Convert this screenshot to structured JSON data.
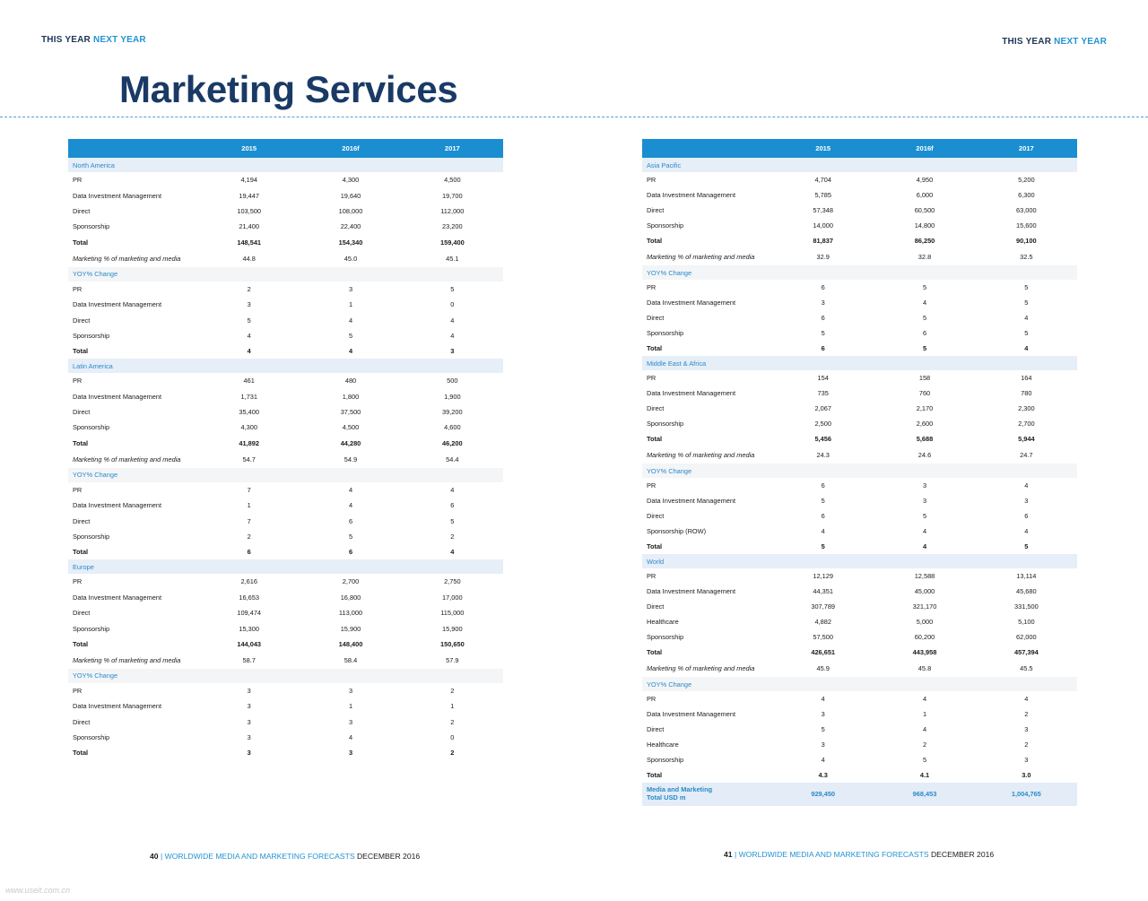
{
  "header": {
    "left_a": "THIS YEAR",
    "left_b": "NEXT YEAR",
    "right_a": "THIS YEAR",
    "right_b": "NEXT YEAR"
  },
  "title": "Marketing Services",
  "columns": [
    "2015",
    "2016f",
    "2017"
  ],
  "left": [
    {
      "type": "region",
      "label": "North America"
    },
    {
      "type": "row",
      "label": "PR",
      "values": [
        "4,194",
        "4,300",
        "4,500"
      ]
    },
    {
      "type": "row",
      "label": "Data Investment Management",
      "values": [
        "19,447",
        "19,640",
        "19,700"
      ]
    },
    {
      "type": "row",
      "label": "Direct",
      "values": [
        "103,500",
        "108,000",
        "112,000"
      ]
    },
    {
      "type": "row",
      "label": "Sponsorship",
      "values": [
        "21,400",
        "22,400",
        "23,200"
      ]
    },
    {
      "type": "total",
      "label": "Total",
      "values": [
        "148,541",
        "154,340",
        "159,400"
      ]
    },
    {
      "type": "mkt",
      "label": "Marketing % of marketing and media",
      "values": [
        "44.8",
        "45.0",
        "45.1"
      ]
    },
    {
      "type": "yoy",
      "label": "YOY% Change"
    },
    {
      "type": "row",
      "label": "PR",
      "values": [
        "2",
        "3",
        "5"
      ]
    },
    {
      "type": "row",
      "label": "Data Investment Management",
      "values": [
        "3",
        "1",
        "0"
      ]
    },
    {
      "type": "row",
      "label": "Direct",
      "values": [
        "5",
        "4",
        "4"
      ]
    },
    {
      "type": "row",
      "label": "Sponsorship",
      "values": [
        "4",
        "5",
        "4"
      ]
    },
    {
      "type": "total",
      "label": "Total",
      "values": [
        "4",
        "4",
        "3"
      ]
    },
    {
      "type": "region",
      "label": "Latin America"
    },
    {
      "type": "row",
      "label": "PR",
      "values": [
        "461",
        "480",
        "500"
      ]
    },
    {
      "type": "row",
      "label": "Data Investment Management",
      "values": [
        "1,731",
        "1,800",
        "1,900"
      ]
    },
    {
      "type": "row",
      "label": "Direct",
      "values": [
        "35,400",
        "37,500",
        "39,200"
      ]
    },
    {
      "type": "row",
      "label": "Sponsorship",
      "values": [
        "4,300",
        "4,500",
        "4,600"
      ]
    },
    {
      "type": "total",
      "label": "Total",
      "values": [
        "41,892",
        "44,280",
        "46,200"
      ]
    },
    {
      "type": "mkt",
      "label": "Marketing % of marketing and media",
      "values": [
        "54.7",
        "54.9",
        "54.4"
      ]
    },
    {
      "type": "yoy",
      "label": "YOY% Change"
    },
    {
      "type": "row",
      "label": "PR",
      "values": [
        "7",
        "4",
        "4"
      ]
    },
    {
      "type": "row",
      "label": "Data Investment Management",
      "values": [
        "1",
        "4",
        "6"
      ]
    },
    {
      "type": "row",
      "label": "Direct",
      "values": [
        "7",
        "6",
        "5"
      ]
    },
    {
      "type": "row",
      "label": "Sponsorship",
      "values": [
        "2",
        "5",
        "2"
      ]
    },
    {
      "type": "total",
      "label": "Total",
      "values": [
        "6",
        "6",
        "4"
      ]
    },
    {
      "type": "region",
      "label": "Europe"
    },
    {
      "type": "row",
      "label": "PR",
      "values": [
        "2,616",
        "2,700",
        "2,750"
      ]
    },
    {
      "type": "row",
      "label": "Data Investment Management",
      "values": [
        "16,653",
        "16,800",
        "17,000"
      ]
    },
    {
      "type": "row",
      "label": "Direct",
      "values": [
        "109,474",
        "113,000",
        "115,000"
      ]
    },
    {
      "type": "row",
      "label": "Sponsorship",
      "values": [
        "15,300",
        "15,900",
        "15,900"
      ]
    },
    {
      "type": "total",
      "label": "Total",
      "values": [
        "144,043",
        "148,400",
        "150,650"
      ]
    },
    {
      "type": "mkt",
      "label": "Marketing % of marketing and media",
      "values": [
        "58.7",
        "58.4",
        "57.9"
      ]
    },
    {
      "type": "yoy",
      "label": "YOY% Change"
    },
    {
      "type": "row",
      "label": "PR",
      "values": [
        "3",
        "3",
        "2"
      ]
    },
    {
      "type": "row",
      "label": "Data Investment Management",
      "values": [
        "3",
        "1",
        "1"
      ]
    },
    {
      "type": "row",
      "label": "Direct",
      "values": [
        "3",
        "3",
        "2"
      ]
    },
    {
      "type": "row",
      "label": "Sponsorship",
      "values": [
        "3",
        "4",
        "0"
      ]
    },
    {
      "type": "total",
      "label": "Total",
      "values": [
        "3",
        "3",
        "2"
      ]
    }
  ],
  "right": [
    {
      "type": "region",
      "label": "Asia Pacific"
    },
    {
      "type": "row",
      "label": "PR",
      "values": [
        "4,704",
        "4,950",
        "5,200"
      ]
    },
    {
      "type": "row",
      "label": "Data Investment Management",
      "values": [
        "5,785",
        "6,000",
        "6,300"
      ]
    },
    {
      "type": "row",
      "label": "Direct",
      "values": [
        "57,348",
        "60,500",
        "63,000"
      ]
    },
    {
      "type": "row",
      "label": "Sponsorship",
      "values": [
        "14,000",
        "14,800",
        "15,600"
      ]
    },
    {
      "type": "total",
      "label": "Total",
      "values": [
        "81,837",
        "86,250",
        "90,100"
      ]
    },
    {
      "type": "mkt",
      "label": "Marketing % of marketing and media",
      "values": [
        "32.9",
        "32.8",
        "32.5"
      ]
    },
    {
      "type": "yoy",
      "label": "YOY% Change"
    },
    {
      "type": "row",
      "label": "PR",
      "values": [
        "6",
        "5",
        "5"
      ]
    },
    {
      "type": "row",
      "label": "Data Investment Management",
      "values": [
        "3",
        "4",
        "5"
      ]
    },
    {
      "type": "row",
      "label": "Direct",
      "values": [
        "6",
        "5",
        "4"
      ]
    },
    {
      "type": "row",
      "label": "Sponsorship",
      "values": [
        "5",
        "6",
        "5"
      ]
    },
    {
      "type": "total",
      "label": "Total",
      "values": [
        "6",
        "5",
        "4"
      ]
    },
    {
      "type": "region",
      "label": "Middle East & Africa"
    },
    {
      "type": "row",
      "label": "PR",
      "values": [
        "154",
        "158",
        "164"
      ]
    },
    {
      "type": "row",
      "label": "Data Investment Management",
      "values": [
        "735",
        "760",
        "780"
      ]
    },
    {
      "type": "row",
      "label": "Direct",
      "values": [
        "2,067",
        "2,170",
        "2,300"
      ]
    },
    {
      "type": "row",
      "label": "Sponsorship",
      "values": [
        "2,500",
        "2,600",
        "2,700"
      ]
    },
    {
      "type": "total",
      "label": "Total",
      "values": [
        "5,456",
        "5,688",
        "5,944"
      ]
    },
    {
      "type": "mkt",
      "label": "Marketing % of marketing and media",
      "values": [
        "24.3",
        "24.6",
        "24.7"
      ]
    },
    {
      "type": "yoy",
      "label": "YOY% Change"
    },
    {
      "type": "row",
      "label": "PR",
      "values": [
        "6",
        "3",
        "4"
      ]
    },
    {
      "type": "row",
      "label": "Data Investment Management",
      "values": [
        "5",
        "3",
        "3"
      ]
    },
    {
      "type": "row",
      "label": "Direct",
      "values": [
        "6",
        "5",
        "6"
      ]
    },
    {
      "type": "row",
      "label": "Sponsorship (ROW)",
      "values": [
        "4",
        "4",
        "4"
      ]
    },
    {
      "type": "total",
      "label": "Total",
      "values": [
        "5",
        "4",
        "5"
      ]
    },
    {
      "type": "region",
      "label": "World"
    },
    {
      "type": "row",
      "label": "PR",
      "values": [
        "12,129",
        "12,588",
        "13,114"
      ]
    },
    {
      "type": "row",
      "label": "Data Investment Management",
      "values": [
        "44,351",
        "45,000",
        "45,680"
      ]
    },
    {
      "type": "row",
      "label": "Direct",
      "values": [
        "307,789",
        "321,170",
        "331,500"
      ]
    },
    {
      "type": "row",
      "label": "Healthcare",
      "values": [
        "4,882",
        "5,000",
        "5,100"
      ]
    },
    {
      "type": "row",
      "label": "Sponsorship",
      "values": [
        "57,500",
        "60,200",
        "62,000"
      ]
    },
    {
      "type": "total",
      "label": "Total",
      "values": [
        "426,651",
        "443,958",
        "457,394"
      ]
    },
    {
      "type": "mkt",
      "label": "Marketing % of marketing and media",
      "values": [
        "45.9",
        "45.8",
        "45.5"
      ]
    },
    {
      "type": "yoy",
      "label": "YOY% Change"
    },
    {
      "type": "row",
      "label": "PR",
      "values": [
        "4",
        "4",
        "4"
      ]
    },
    {
      "type": "row",
      "label": "Data Investment Management",
      "values": [
        "3",
        "1",
        "2"
      ]
    },
    {
      "type": "row",
      "label": "Direct",
      "values": [
        "5",
        "4",
        "3"
      ]
    },
    {
      "type": "row",
      "label": "Healthcare",
      "values": [
        "3",
        "2",
        "2"
      ]
    },
    {
      "type": "row",
      "label": "Sponsorship",
      "values": [
        "4",
        "5",
        "3"
      ]
    },
    {
      "type": "total",
      "label": "Total",
      "values": [
        "4.3",
        "4.1",
        "3.0"
      ]
    },
    {
      "type": "grand",
      "label": "Media and Marketing",
      "label2": "Total USD m",
      "values": [
        "929,450",
        "968,453",
        "1,004,765"
      ]
    }
  ],
  "footer_left": {
    "page": "40",
    "sep": " | ",
    "pub": "WORLDWIDE MEDIA AND MARKETING FORECASTS",
    "date": " DECEMBER 2016"
  },
  "footer_right": {
    "page": "41",
    "sep": " | ",
    "pub": "WORLDWIDE MEDIA AND MARKETING FORECASTS",
    "date": " DECEMBER 2016"
  },
  "watermark": "www.useit.com.cn"
}
